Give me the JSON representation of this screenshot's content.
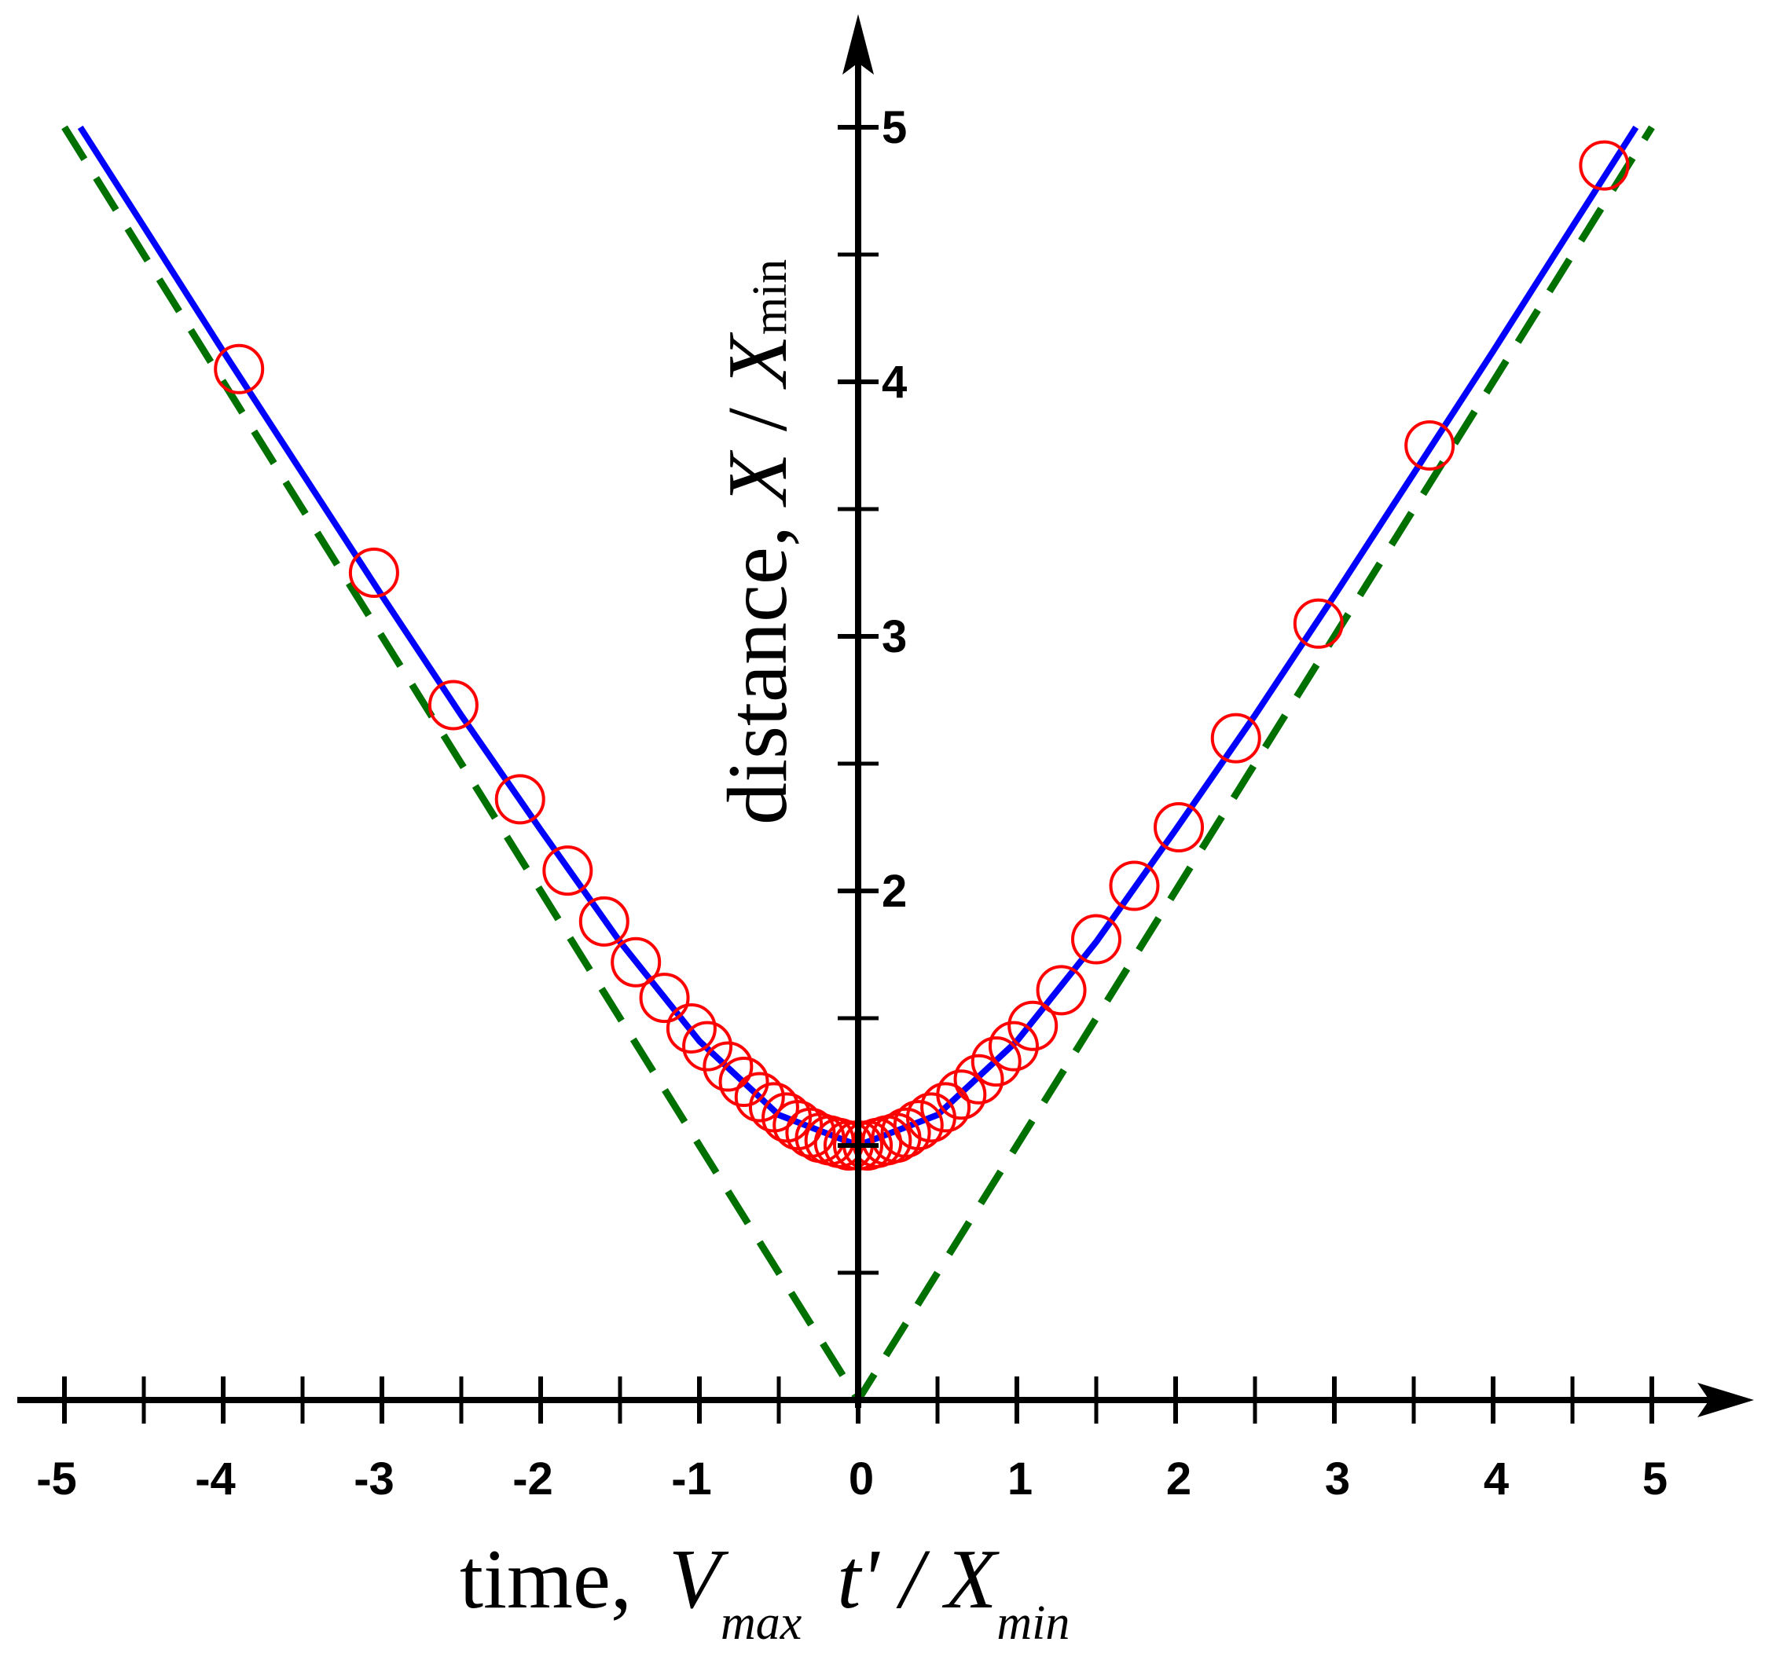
{
  "chart_data": {
    "type": "line",
    "title": "",
    "xlabel": {
      "prefix": "time, ",
      "v": "V",
      "v_sub": "max",
      "t": "t'",
      "slash": " / ",
      "x": "X",
      "x_sub": "min"
    },
    "ylabel": {
      "prefix": "distance, ",
      "x": "X",
      "slash": " / ",
      "x2": "X",
      "x2_sub": "min"
    },
    "xlim": [
      -5,
      5
    ],
    "ylim": [
      0,
      5
    ],
    "x_tick_labels": [
      "-5",
      "-4",
      "-3",
      "-2",
      "-1",
      "0",
      "1",
      "2",
      "3",
      "4",
      "5"
    ],
    "y_tick_labels": [
      "2",
      "3",
      "4",
      "5"
    ],
    "grid": false,
    "legend": "none",
    "series": [
      {
        "style": "solid",
        "color": "#0000ff",
        "x": [
          -4.9,
          -4.5,
          -4.0,
          -3.5,
          -3.0,
          -2.5,
          -2.0,
          -1.5,
          -1.0,
          -0.5,
          0,
          0.5,
          1.0,
          1.5,
          2.0,
          2.5,
          3.0,
          3.5,
          4.0,
          4.5,
          4.9
        ],
        "y": [
          5.0,
          4.61,
          4.12,
          3.64,
          3.16,
          2.69,
          2.24,
          1.8,
          1.41,
          1.12,
          1.0,
          1.12,
          1.41,
          1.8,
          2.24,
          2.69,
          3.16,
          3.64,
          4.12,
          4.61,
          5.0
        ]
      },
      {
        "style": "dashed",
        "color": "#007000",
        "x": [
          -5,
          0,
          5
        ],
        "y": [
          5,
          0,
          5
        ]
      },
      {
        "style": "markers",
        "color": "#ff0000",
        "x": [
          -3.9,
          -3.05,
          -2.55,
          -2.13,
          -1.83,
          -1.6,
          -1.4,
          -1.22,
          -1.05,
          -0.95,
          -0.82,
          -0.72,
          -0.62,
          -0.53,
          -0.45,
          -0.38,
          -0.3,
          -0.24,
          -0.18,
          -0.12,
          -0.06,
          0.0,
          0.06,
          0.12,
          0.18,
          0.24,
          0.3,
          0.38,
          0.46,
          0.55,
          0.65,
          0.76,
          0.87,
          0.98,
          1.1,
          1.28,
          1.5,
          1.74,
          2.02,
          2.38,
          2.9,
          3.6,
          4.7
        ],
        "y": [
          4.05,
          3.25,
          2.73,
          2.36,
          2.08,
          1.88,
          1.72,
          1.58,
          1.46,
          1.39,
          1.31,
          1.25,
          1.19,
          1.15,
          1.11,
          1.08,
          1.05,
          1.03,
          1.02,
          1.01,
          1.0,
          1.0,
          1.0,
          1.01,
          1.02,
          1.03,
          1.05,
          1.08,
          1.11,
          1.15,
          1.2,
          1.26,
          1.33,
          1.39,
          1.47,
          1.61,
          1.81,
          2.02,
          2.25,
          2.6,
          3.05,
          3.75,
          4.85
        ]
      }
    ]
  }
}
